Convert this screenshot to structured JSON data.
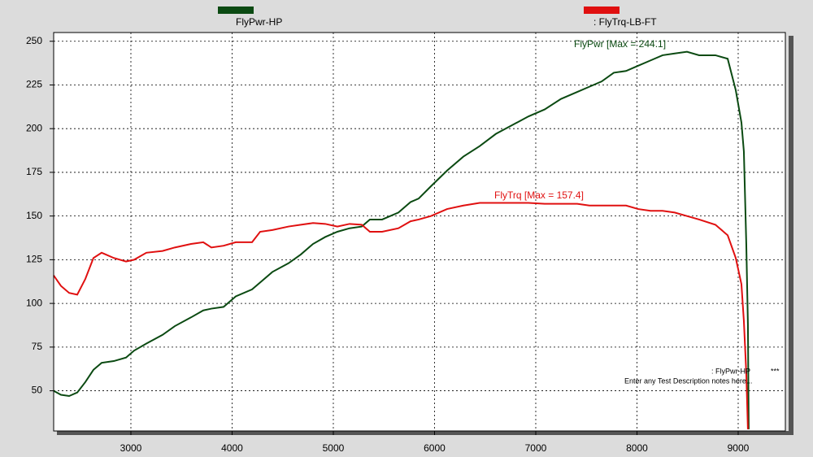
{
  "chart_data": {
    "type": "line",
    "x": [
      2237,
      2309,
      2390,
      2470,
      2550,
      2630,
      2711,
      2831,
      2952,
      3032,
      3153,
      3313,
      3434,
      3594,
      3715,
      3795,
      3916,
      4036,
      4197,
      4277,
      4398,
      4558,
      4679,
      4799,
      4920,
      5040,
      5161,
      5281,
      5361,
      5482,
      5643,
      5763,
      5843,
      5964,
      6124,
      6285,
      6446,
      6606,
      6767,
      6928,
      7088,
      7249,
      7410,
      7530,
      7651,
      7771,
      7892,
      8012,
      8133,
      8253,
      8373,
      8494,
      8614,
      8775,
      8896,
      8976,
      9032,
      9056,
      9080,
      9096,
      9104
    ],
    "series": [
      {
        "name": "FlyPwr-HP",
        "color": "#0b4a12",
        "values": [
          50,
          47.7,
          47,
          49,
          55,
          62,
          66,
          67,
          69,
          73,
          77,
          82,
          87,
          92,
          96,
          97,
          98,
          104,
          108,
          112,
          118,
          123,
          128,
          134,
          138,
          141,
          143,
          144,
          148,
          148,
          152,
          158,
          160,
          167,
          176,
          184,
          190,
          197,
          202,
          207,
          211,
          217,
          221,
          224,
          227,
          232,
          233,
          236,
          239,
          242,
          243,
          244,
          242,
          242,
          240,
          222,
          203.5,
          187,
          134,
          88,
          28
        ]
      },
      {
        "name": ": FlyTrq-LB-FT",
        "color": "#e01010",
        "values": [
          116,
          110,
          106,
          105,
          114,
          126,
          129,
          126,
          124,
          125,
          129,
          130,
          132,
          134,
          135,
          132,
          133,
          135,
          135,
          141,
          142,
          144,
          145,
          146,
          145.5,
          144,
          145.5,
          145,
          141,
          141,
          143,
          147,
          148,
          150,
          154,
          156,
          157.5,
          157.5,
          157.5,
          157.5,
          157,
          157,
          157,
          156,
          156,
          156,
          156,
          154,
          153,
          153,
          152,
          150,
          148,
          145,
          139,
          126,
          111,
          90,
          60,
          28,
          null
        ]
      }
    ],
    "xlim": [
      2237,
      9466
    ],
    "xticks": [
      3000,
      4000,
      5000,
      6000,
      7000,
      8000,
      9000
    ],
    "ylim": [
      27,
      255
    ],
    "yticks": [
      50,
      75,
      100,
      125,
      150,
      175,
      200,
      225,
      250
    ],
    "grid": true,
    "annotations": [
      "FlyPwr [Max = 244.1]",
      "FlyTrq [Max = 157.4]",
      ": FlyPwr-HP",
      "***",
      "Enter any Test Description notes here..."
    ]
  }
}
